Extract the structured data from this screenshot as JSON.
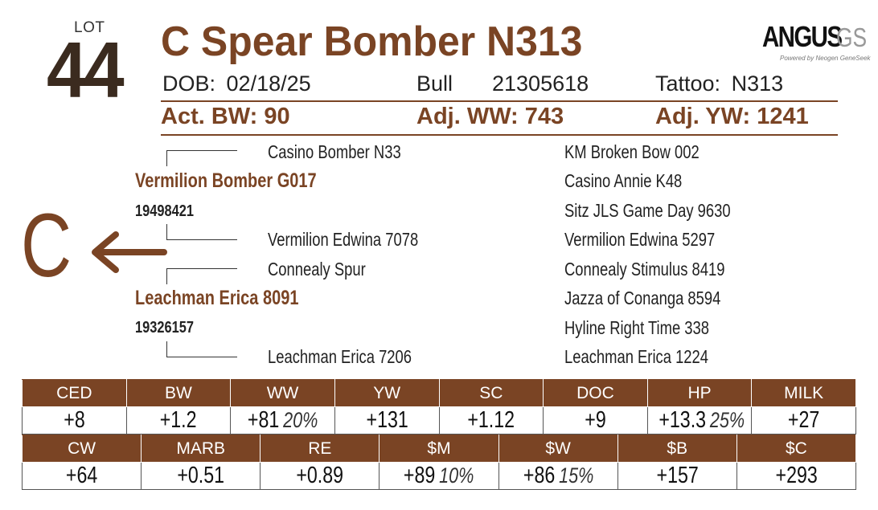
{
  "lot": {
    "label": "LOT",
    "number": "44"
  },
  "animal": {
    "name": "C Spear Bomber N313",
    "dob_label": "DOB:",
    "dob": "02/18/25",
    "sex": "Bull",
    "registration": "21305618",
    "tattoo_label": "Tattoo:",
    "tattoo": "N313"
  },
  "logo": {
    "main": "ANGUS",
    "suffix": "GS",
    "tagline": "Powered by Neogen GeneSeek"
  },
  "weights": {
    "act_bw_label": "Act. BW:",
    "act_bw": "90",
    "adj_ww_label": "Adj. WW:",
    "adj_ww": "743",
    "adj_yw_label": "Adj. YW:",
    "adj_yw": "1241"
  },
  "brand": {
    "letter": "C"
  },
  "pedigree": {
    "sire": {
      "name": "Vermilion Bomber G017",
      "reg": "19498421"
    },
    "dam": {
      "name": "Leachman Erica 8091",
      "reg": "19326157"
    },
    "grandparents": {
      "sire_sire": "Casino Bomber N33",
      "sire_dam": "Vermilion Edwina 7078",
      "dam_sire": "Connealy Spur",
      "dam_dam": "Leachman Erica 7206"
    },
    "great_grandparents": [
      "KM Broken Bow 002",
      "Casino Annie K48",
      "Sitz JLS Game Day 9630",
      "Vermilion Edwina 5297",
      "Connealy Stimulus 8419",
      "Jazza of Conanga 8594",
      "Hyline Right Time 338",
      "Leachman Erica 1224"
    ]
  },
  "epd_row1": {
    "headers": [
      "CED",
      "BW",
      "WW",
      "YW",
      "SC",
      "DOC",
      "HP",
      "MILK"
    ],
    "values": [
      {
        "value": "+8",
        "pct": ""
      },
      {
        "value": "+1.2",
        "pct": ""
      },
      {
        "value": "+81",
        "pct": "20%"
      },
      {
        "value": "+131",
        "pct": ""
      },
      {
        "value": "+1.12",
        "pct": ""
      },
      {
        "value": "+9",
        "pct": ""
      },
      {
        "value": "+13.3",
        "pct": "25%"
      },
      {
        "value": "+27",
        "pct": ""
      }
    ]
  },
  "epd_row2": {
    "headers": [
      "CW",
      "MARB",
      "RE",
      "$M",
      "$W",
      "$B",
      "$C"
    ],
    "values": [
      {
        "value": "+64",
        "pct": ""
      },
      {
        "value": "+0.51",
        "pct": ""
      },
      {
        "value": "+0.89",
        "pct": ""
      },
      {
        "value": "+89",
        "pct": "10%"
      },
      {
        "value": "+86",
        "pct": "15%"
      },
      {
        "value": "+157",
        "pct": ""
      },
      {
        "value": "+293",
        "pct": ""
      }
    ]
  },
  "colors": {
    "brand_brown": "#7a4424",
    "lot_number": "#3b2b1f"
  }
}
